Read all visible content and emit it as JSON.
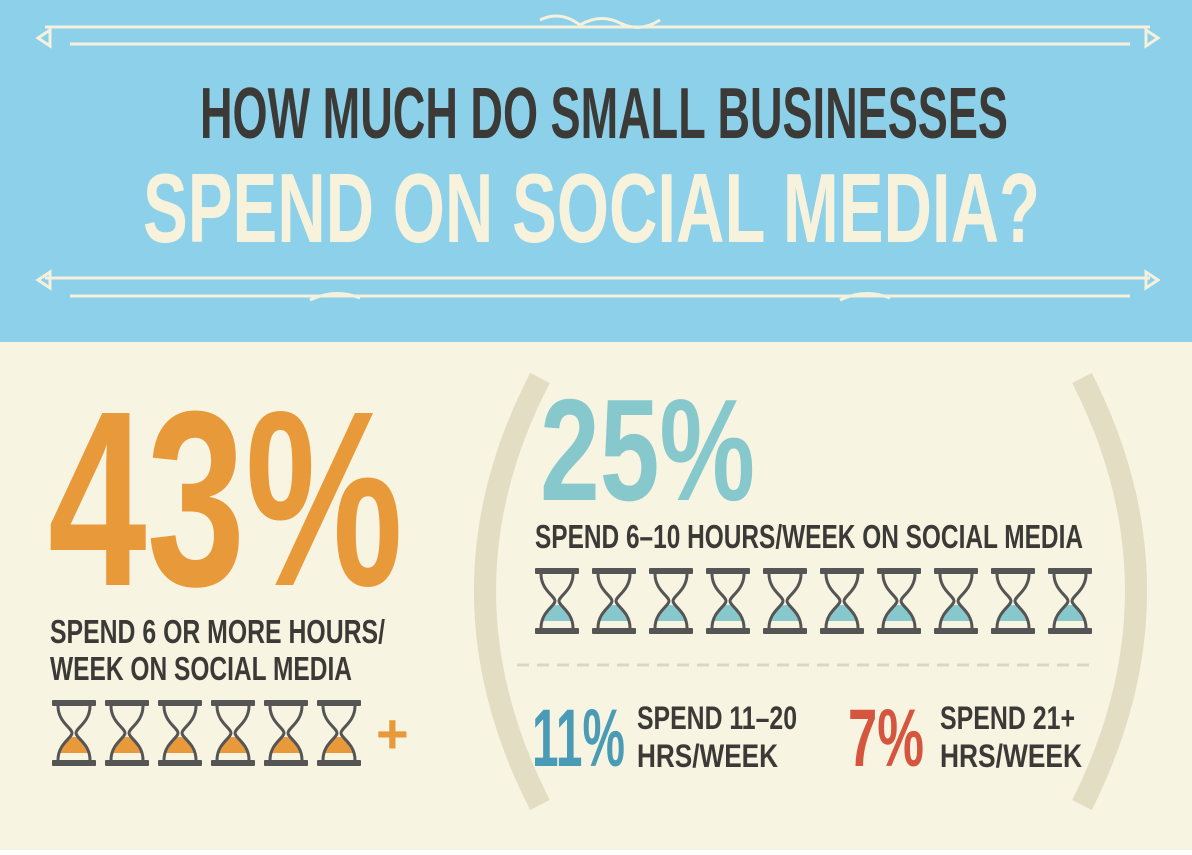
{
  "header": {
    "title_line1": "HOW MUCH DO SMALL BUSINESSES",
    "title_line2": "SPEND ON SOCIAL MEDIA?"
  },
  "main_stat": {
    "percent": "43%",
    "line1": "SPEND 6 OR MORE HOURS/",
    "line2": "WEEK ON SOCIAL MEDIA",
    "plus": "+"
  },
  "breakdown": [
    {
      "percent": "25%",
      "label": "SPEND 6–10 HOURS/WEEK ON SOCIAL MEDIA"
    },
    {
      "percent": "11%",
      "line1": "SPEND 11–20",
      "line2": "HRS/WEEK"
    },
    {
      "percent": "7%",
      "line1": "SPEND 21+",
      "line2": "HRS/WEEK"
    }
  ]
}
